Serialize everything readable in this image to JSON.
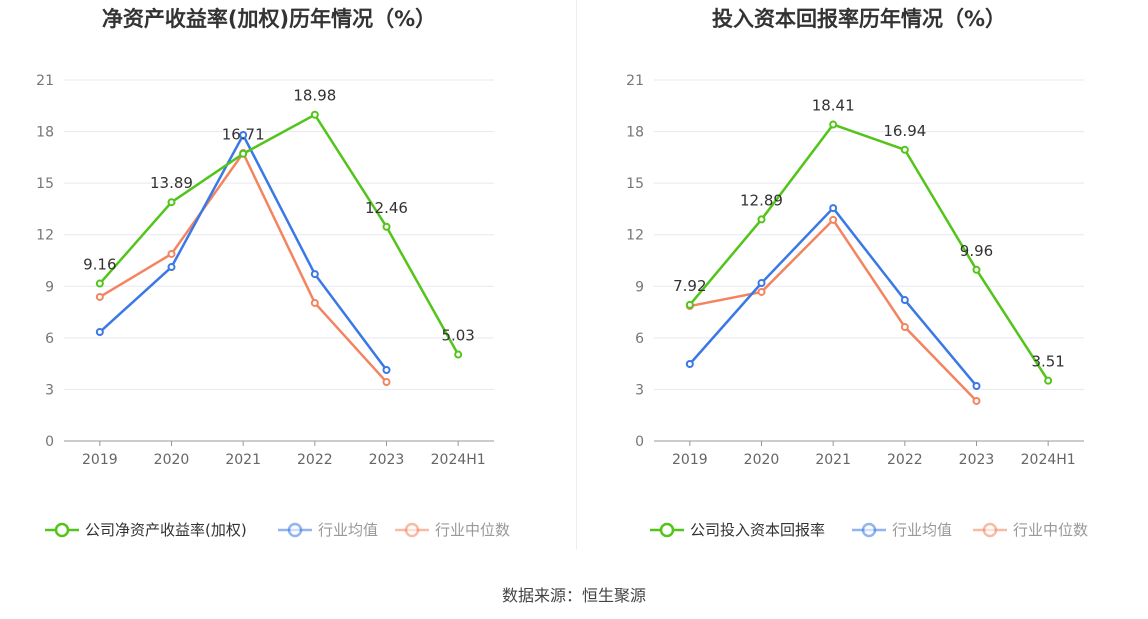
{
  "chart_data": [
    {
      "type": "line",
      "title": "净资产收益率(加权)历年情况（%）",
      "categories": [
        "2019",
        "2020",
        "2021",
        "2022",
        "2023",
        "2024H1"
      ],
      "ylim": [
        0,
        21
      ],
      "yticks": [
        0,
        3,
        6,
        9,
        12,
        15,
        18,
        21
      ],
      "series": [
        {
          "name": "公司净资产收益率(加权)",
          "color": "#52c41a",
          "values": [
            9.16,
            13.89,
            16.71,
            18.98,
            12.46,
            5.03
          ],
          "labels": [
            "9.16",
            "13.89",
            "16.71",
            "18.98",
            "12.46",
            "5.03"
          ]
        },
        {
          "name": "行业均值",
          "color": "#3b78e7",
          "values": [
            6.34,
            10.12,
            17.8,
            9.71,
            4.13,
            null
          ]
        },
        {
          "name": "行业中位数",
          "color": "#f4845f",
          "values": [
            8.38,
            10.88,
            16.75,
            8.03,
            3.43,
            null
          ]
        }
      ]
    },
    {
      "type": "line",
      "title": "投入资本回报率历年情况（%）",
      "categories": [
        "2019",
        "2020",
        "2021",
        "2022",
        "2023",
        "2024H1"
      ],
      "ylim": [
        0,
        21
      ],
      "yticks": [
        0,
        3,
        6,
        9,
        12,
        15,
        18,
        21
      ],
      "series": [
        {
          "name": "公司投入资本回报率",
          "color": "#52c41a",
          "values": [
            7.92,
            12.89,
            18.41,
            16.94,
            9.96,
            3.51
          ],
          "labels": [
            "7.92",
            "12.89",
            "18.41",
            "16.94",
            "9.96",
            "3.51"
          ]
        },
        {
          "name": "行业均值",
          "color": "#3b78e7",
          "values": [
            4.48,
            9.19,
            13.55,
            8.2,
            3.2,
            null
          ]
        },
        {
          "name": "行业中位数",
          "color": "#f4845f",
          "values": [
            7.85,
            8.67,
            12.86,
            6.63,
            2.33,
            null
          ]
        }
      ]
    }
  ],
  "source": "数据来源：恒生聚源"
}
